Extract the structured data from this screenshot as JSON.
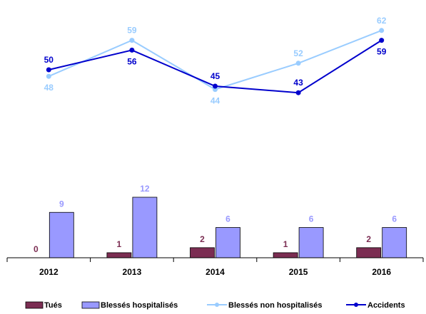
{
  "chart_data": {
    "type": "bar+line",
    "categories": [
      "2012",
      "2013",
      "2014",
      "2015",
      "2016"
    ],
    "bar_series": [
      {
        "name": "Tués",
        "values": [
          0,
          1,
          2,
          1,
          2
        ],
        "color": "#7b2d52",
        "label_color": "#7b2d52"
      },
      {
        "name": "Blessés hospitalisés",
        "values": [
          9,
          12,
          6,
          6,
          6
        ],
        "color": "#9999ff",
        "label_color": "#9999ff"
      }
    ],
    "line_series": [
      {
        "name": "Blessés non hospitalisés",
        "values": [
          48,
          59,
          44,
          52,
          62
        ],
        "color": "#99ccff",
        "label_color": "#99ccff"
      },
      {
        "name": "Accidents",
        "values": [
          50,
          56,
          45,
          43,
          59
        ],
        "color": "#0000cc",
        "label_color": "#0000cc"
      }
    ],
    "legend": [
      "Tués",
      "Blessés hospitalisés",
      "Blessés non hospitalisés",
      "Accidents"
    ],
    "legend_position": "bottom",
    "grid": false
  }
}
